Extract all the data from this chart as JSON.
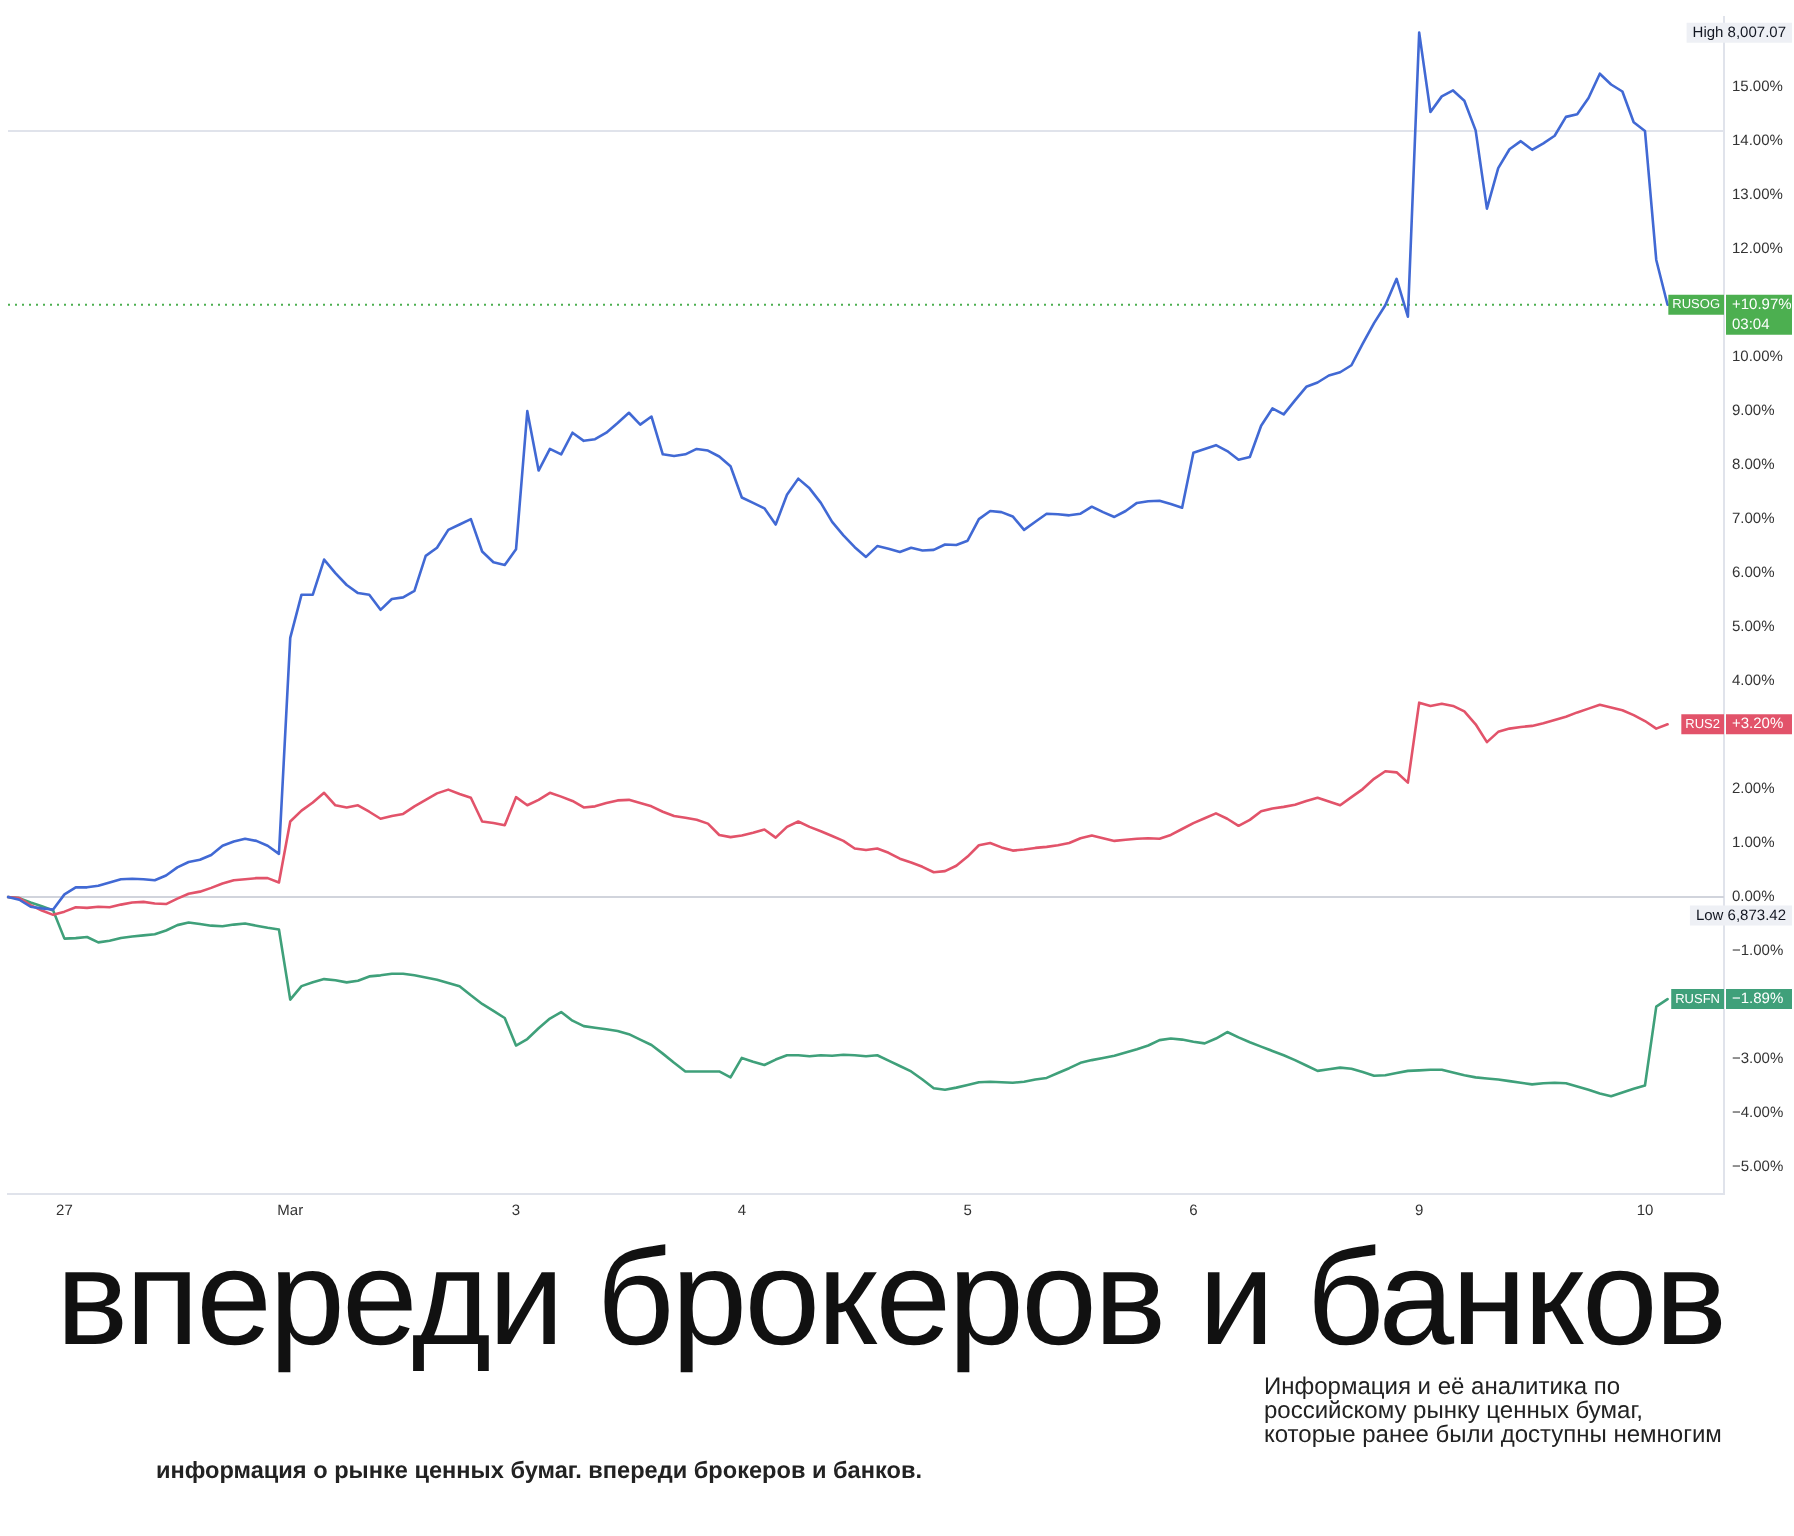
{
  "chart_data": {
    "type": "line",
    "legend": "right",
    "categories": [
      null,
      null,
      null,
      null,
      null,
      "27",
      null,
      null,
      null,
      null,
      null,
      null,
      null,
      null,
      null,
      null,
      null,
      null,
      null,
      null,
      null,
      null,
      null,
      null,
      null,
      "Mar",
      null,
      null,
      null,
      null,
      null,
      null,
      null,
      null,
      null,
      null,
      null,
      null,
      null,
      null,
      null,
      null,
      null,
      null,
      null,
      "3",
      null,
      null,
      null,
      null,
      null,
      null,
      null,
      null,
      null,
      null,
      null,
      null,
      null,
      null,
      null,
      null,
      null,
      null,
      null,
      "4",
      null,
      null,
      null,
      null,
      null,
      null,
      null,
      null,
      null,
      null,
      null,
      null,
      null,
      null,
      null,
      null,
      null,
      null,
      null,
      "5",
      null,
      null,
      null,
      null,
      null,
      null,
      null,
      null,
      null,
      null,
      null,
      null,
      null,
      null,
      null,
      null,
      null,
      null,
      null,
      "6",
      null,
      null,
      null,
      null,
      null,
      null,
      null,
      null,
      null,
      null,
      null,
      null,
      null,
      null,
      null,
      null,
      null,
      null,
      null,
      "9",
      null,
      null,
      null,
      null,
      null,
      null,
      null,
      null,
      null,
      null,
      null,
      null,
      null,
      null,
      null,
      null,
      null,
      null,
      null,
      "10",
      null,
      null,
      null,
      null,
      null,
      null,
      null
    ],
    "ylim": [
      -5.5,
      16.3
    ],
    "yticks": [
      {
        "value": 15,
        "label": "15.00%"
      },
      {
        "value": 14,
        "label": "14.00%"
      },
      {
        "value": 13,
        "label": "13.00%"
      },
      {
        "value": 12,
        "label": "12.00%"
      },
      {
        "value": 10,
        "label": "10.00%"
      },
      {
        "value": 9,
        "label": "9.00%"
      },
      {
        "value": 8,
        "label": "8.00%"
      },
      {
        "value": 7,
        "label": "7.00%"
      },
      {
        "value": 6,
        "label": "6.00%"
      },
      {
        "value": 5,
        "label": "5.00%"
      },
      {
        "value": 4,
        "label": "4.00%"
      },
      {
        "value": 2,
        "label": "2.00%"
      },
      {
        "value": 1,
        "label": "1.00%"
      },
      {
        "value": 0,
        "label": "0.00%"
      },
      {
        "value": -1,
        "label": "−1.00%"
      },
      {
        "value": -3,
        "label": "−3.00%"
      },
      {
        "value": -4,
        "label": "−4.00%"
      },
      {
        "value": -5,
        "label": "−5.00%"
      }
    ],
    "series": [
      {
        "name": "RUSOG",
        "color": "#4169d4",
        "values": [
          0,
          -0.05,
          -0.18,
          -0.21,
          -0.23,
          0.05,
          0.18,
          0.18,
          0.21,
          0.27,
          0.33,
          0.34,
          0.33,
          0.31,
          0.4,
          0.55,
          0.65,
          0.69,
          0.78,
          0.95,
          1.03,
          1.08,
          1.04,
          0.95,
          0.8,
          4.8,
          5.6,
          5.6,
          6.25,
          6.0,
          5.78,
          5.63,
          5.6,
          5.32,
          5.52,
          5.55,
          5.67,
          6.32,
          6.47,
          6.8,
          6.9,
          7.0,
          6.4,
          6.2,
          6.15,
          6.44,
          9.0,
          7.9,
          8.3,
          8.2,
          8.6,
          8.45,
          8.48,
          8.6,
          8.78,
          8.97,
          8.75,
          8.9,
          8.2,
          8.17,
          8.2,
          8.3,
          8.27,
          8.16,
          7.98,
          7.4,
          7.3,
          7.2,
          6.9,
          7.45,
          7.75,
          7.57,
          7.3,
          6.95,
          6.7,
          6.48,
          6.3,
          6.5,
          6.45,
          6.39,
          6.47,
          6.42,
          6.43,
          6.53,
          6.52,
          6.6,
          7.0,
          7.15,
          7.13,
          7.05,
          6.8,
          6.95,
          7.1,
          7.09,
          7.07,
          7.1,
          7.23,
          7.13,
          7.04,
          7.15,
          7.3,
          7.33,
          7.34,
          7.28,
          7.21,
          8.23,
          8.3,
          8.37,
          8.26,
          8.1,
          8.15,
          8.73,
          9.05,
          8.94,
          9.2,
          9.45,
          9.53,
          9.66,
          9.72,
          9.85,
          10.25,
          10.63,
          10.96,
          11.45,
          10.75,
          16.01,
          14.54,
          14.83,
          14.94,
          14.75,
          14.2,
          12.75,
          13.5,
          13.85,
          14.0,
          13.84,
          13.96,
          14.1,
          14.45,
          14.5,
          14.8,
          15.25,
          15.05,
          14.92,
          14.35,
          14.19,
          11.8,
          10.97,
          null,
          null,
          null,
          null,
          null
        ]
      },
      {
        "name": "RUS2",
        "color": "#e2536a",
        "values": [
          0,
          -0.02,
          -0.15,
          -0.25,
          -0.33,
          -0.27,
          -0.19,
          -0.2,
          -0.18,
          -0.19,
          -0.14,
          -0.1,
          -0.09,
          -0.12,
          -0.13,
          -0.03,
          0.06,
          0.1,
          0.17,
          0.25,
          0.31,
          0.33,
          0.35,
          0.35,
          0.27,
          1.4,
          1.6,
          1.75,
          1.93,
          1.7,
          1.66,
          1.7,
          1.58,
          1.45,
          1.5,
          1.54,
          1.68,
          1.8,
          1.92,
          1.99,
          1.91,
          1.84,
          1.4,
          1.37,
          1.33,
          1.85,
          1.7,
          1.8,
          1.93,
          1.86,
          1.78,
          1.66,
          1.68,
          1.74,
          1.79,
          1.8,
          1.74,
          1.68,
          1.58,
          1.5,
          1.47,
          1.43,
          1.36,
          1.15,
          1.11,
          1.14,
          1.19,
          1.25,
          1.1,
          1.3,
          1.4,
          1.3,
          1.22,
          1.13,
          1.04,
          0.9,
          0.87,
          0.9,
          0.82,
          0.71,
          0.64,
          0.56,
          0.46,
          0.48,
          0.58,
          0.75,
          0.96,
          1.0,
          0.92,
          0.86,
          0.88,
          0.91,
          0.93,
          0.96,
          1.0,
          1.09,
          1.14,
          1.09,
          1.04,
          1.06,
          1.08,
          1.09,
          1.08,
          1.15,
          1.26,
          1.37,
          1.46,
          1.55,
          1.45,
          1.32,
          1.43,
          1.59,
          1.64,
          1.67,
          1.71,
          1.78,
          1.84,
          1.77,
          1.7,
          1.85,
          2.0,
          2.19,
          2.33,
          2.31,
          2.12,
          3.6,
          3.54,
          3.58,
          3.54,
          3.44,
          3.2,
          2.87,
          3.06,
          3.12,
          3.15,
          3.17,
          3.22,
          3.28,
          3.34,
          3.42,
          3.49,
          3.56,
          3.51,
          3.46,
          3.37,
          3.26,
          3.12,
          3.2,
          null,
          null,
          null,
          null,
          null
        ]
      },
      {
        "name": "RUSFN",
        "color": "#3fa07a",
        "values": [
          0,
          -0.02,
          -0.1,
          -0.17,
          -0.25,
          -0.77,
          -0.76,
          -0.74,
          -0.84,
          -0.81,
          -0.76,
          -0.73,
          -0.71,
          -0.69,
          -0.62,
          -0.52,
          -0.47,
          -0.5,
          -0.53,
          -0.54,
          -0.51,
          -0.49,
          -0.53,
          -0.57,
          -0.6,
          -1.9,
          -1.65,
          -1.58,
          -1.52,
          -1.54,
          -1.58,
          -1.55,
          -1.47,
          -1.45,
          -1.42,
          -1.42,
          -1.45,
          -1.49,
          -1.53,
          -1.59,
          -1.65,
          -1.82,
          -1.98,
          -2.11,
          -2.24,
          -2.75,
          -2.63,
          -2.43,
          -2.25,
          -2.13,
          -2.29,
          -2.39,
          -2.42,
          -2.45,
          -2.48,
          -2.54,
          -2.64,
          -2.74,
          -2.9,
          -3.07,
          -3.23,
          -3.23,
          -3.23,
          -3.23,
          -3.34,
          -2.98,
          -3.05,
          -3.11,
          -3.01,
          -2.93,
          -2.93,
          -2.95,
          -2.93,
          -2.94,
          -2.92,
          -2.93,
          -2.95,
          -2.93,
          -3.03,
          -3.13,
          -3.23,
          -3.38,
          -3.54,
          -3.57,
          -3.53,
          -3.48,
          -3.43,
          -3.42,
          -3.43,
          -3.44,
          -3.42,
          -3.38,
          -3.35,
          -3.26,
          -3.17,
          -3.07,
          -3.02,
          -2.98,
          -2.94,
          -2.88,
          -2.82,
          -2.75,
          -2.65,
          -2.62,
          -2.64,
          -2.68,
          -2.71,
          -2.62,
          -2.5,
          -2.6,
          -2.69,
          -2.77,
          -2.85,
          -2.93,
          -3.02,
          -3.12,
          -3.22,
          -3.19,
          -3.16,
          -3.18,
          -3.24,
          -3.31,
          -3.3,
          -3.26,
          -3.22,
          -3.21,
          -3.2,
          -3.2,
          -3.25,
          -3.3,
          -3.34,
          -3.36,
          -3.38,
          -3.41,
          -3.44,
          -3.47,
          -3.45,
          -3.44,
          -3.45,
          -3.51,
          -3.57,
          -3.64,
          -3.69,
          -3.62,
          -3.55,
          -3.49,
          -2.03,
          -1.89,
          null,
          null,
          null,
          null,
          null
        ]
      }
    ],
    "ref_lines": [
      {
        "axis": "y",
        "value": 0,
        "color": "#d1d4dc"
      },
      {
        "axis": "y",
        "value": 14.19,
        "color": "#e0e3eb"
      },
      {
        "axis": "y",
        "value": 10.97,
        "color": "#4caf50",
        "line_style": "dotted"
      }
    ],
    "annotations": [
      "High 8,007.07",
      "+10.97%",
      "03:04",
      "+3.20%",
      "Low 6,873.42",
      "−1.89%",
      "впереди брокеров и банков",
      "информация о рынке ценных бумаг. впереди брокеров и банков.",
      "Информация и её аналитика по российскому рынку ценных бумаг, которые ранее были доступны немногим"
    ]
  }
}
